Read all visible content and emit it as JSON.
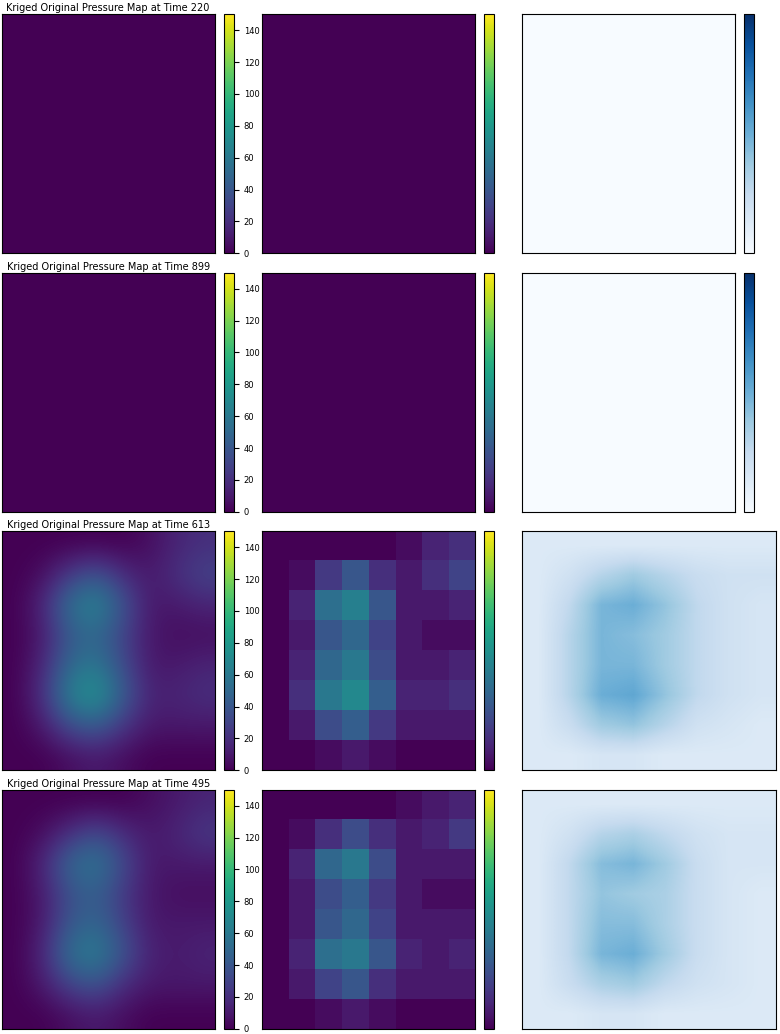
{
  "chart_data": [
    {
      "type": "heatmap",
      "title": "Kriged Original Pressure Map at Time 220",
      "tick_labels": false,
      "cells": [
        [
          0,
          0,
          0,
          0,
          0,
          0,
          0,
          0
        ],
        [
          0,
          0,
          0,
          0,
          0,
          0,
          0,
          0
        ],
        [
          0,
          0,
          0,
          0,
          0,
          0,
          0,
          0
        ],
        [
          0,
          0,
          0,
          0,
          0,
          0,
          0,
          0
        ],
        [
          0,
          0,
          0,
          0,
          0,
          0,
          0,
          0
        ],
        [
          0,
          0,
          0,
          0,
          0,
          0,
          0,
          0
        ],
        [
          0,
          0,
          0,
          0,
          0,
          0,
          0,
          0
        ],
        [
          0,
          0,
          0,
          0,
          0,
          0,
          0,
          0
        ]
      ],
      "colorbar": {
        "range": [
          0,
          150
        ],
        "ticks": [
          0,
          20,
          40,
          60,
          80,
          100,
          120,
          140
        ]
      }
    },
    {
      "type": "heatmap",
      "tick_labels": false,
      "cells": [
        [
          0,
          0,
          0,
          0,
          0,
          0,
          0,
          0
        ],
        [
          0,
          0,
          0,
          0,
          0,
          0,
          0,
          0
        ],
        [
          0,
          0,
          0,
          0,
          0,
          0,
          0,
          0
        ],
        [
          0,
          0,
          0,
          0,
          0,
          0,
          0,
          0
        ],
        [
          0,
          0,
          0,
          0,
          0,
          0,
          0,
          0
        ],
        [
          0,
          0,
          0,
          0,
          0,
          0,
          0,
          0
        ],
        [
          0,
          0,
          0,
          0,
          0,
          0,
          0,
          0
        ],
        [
          0,
          0,
          0,
          0,
          0,
          0,
          0,
          0
        ]
      ],
      "colorbar": {
        "range": [
          0,
          150
        ]
      }
    },
    {
      "type": "heatmap",
      "tick_labels": false,
      "cells": [
        [
          0,
          0,
          0,
          0,
          0,
          0,
          0,
          0
        ],
        [
          0,
          0,
          0,
          0,
          0,
          0,
          0,
          0
        ],
        [
          0,
          0,
          0,
          0,
          0,
          0,
          0,
          0
        ],
        [
          0,
          0,
          0,
          0,
          0,
          0,
          0,
          0
        ],
        [
          0,
          0,
          0,
          0,
          0,
          0,
          0,
          0
        ],
        [
          0,
          0,
          0,
          0,
          0,
          0,
          0,
          0
        ],
        [
          0,
          0,
          0,
          0,
          0,
          0,
          0,
          0
        ],
        [
          0,
          0,
          0,
          0,
          0,
          0,
          0,
          0
        ]
      ],
      "colorbar": {
        "range": [
          0,
          150
        ]
      }
    },
    {
      "type": "heatmap",
      "title": "Kriged Original Pressure Map at Time 899",
      "tick_labels": false,
      "cells": [
        [
          0,
          0,
          0,
          0,
          0,
          0,
          0,
          0
        ],
        [
          0,
          0,
          0,
          0,
          0,
          0,
          0,
          0
        ],
        [
          0,
          0,
          0,
          0,
          0,
          0,
          0,
          0
        ],
        [
          0,
          0,
          0,
          0,
          0,
          0,
          0,
          0
        ],
        [
          0,
          0,
          0,
          0,
          0,
          0,
          0,
          0
        ],
        [
          0,
          0,
          0,
          0,
          0,
          0,
          0,
          0
        ],
        [
          0,
          0,
          0,
          0,
          0,
          0,
          0,
          0
        ],
        [
          0,
          0,
          0,
          0,
          0,
          0,
          0,
          0
        ]
      ],
      "colorbar": {
        "range": [
          0,
          150
        ],
        "ticks": [
          0,
          20,
          40,
          60,
          80,
          100,
          120,
          140
        ]
      }
    },
    {
      "type": "heatmap",
      "tick_labels": false,
      "cells": [
        [
          0,
          0,
          0,
          0,
          0,
          0,
          0,
          0
        ],
        [
          0,
          0,
          0,
          0,
          0,
          0,
          0,
          0
        ],
        [
          0,
          0,
          0,
          0,
          0,
          0,
          0,
          0
        ],
        [
          0,
          0,
          0,
          0,
          0,
          0,
          0,
          0
        ],
        [
          0,
          0,
          0,
          0,
          0,
          0,
          0,
          0
        ],
        [
          0,
          0,
          0,
          0,
          0,
          0,
          0,
          0
        ],
        [
          0,
          0,
          0,
          0,
          0,
          0,
          0,
          0
        ],
        [
          0,
          0,
          0,
          0,
          0,
          0,
          0,
          0
        ]
      ],
      "colorbar": {
        "range": [
          0,
          150
        ]
      }
    },
    {
      "type": "heatmap",
      "tick_labels": false,
      "cells": [
        [
          0,
          0,
          0,
          0,
          0,
          0,
          0,
          0
        ],
        [
          0,
          0,
          0,
          0,
          0,
          0,
          0,
          0
        ],
        [
          0,
          0,
          0,
          0,
          0,
          0,
          0,
          0
        ],
        [
          0,
          0,
          0,
          0,
          0,
          0,
          0,
          0
        ],
        [
          0,
          0,
          0,
          0,
          0,
          0,
          0,
          0
        ],
        [
          0,
          0,
          0,
          0,
          0,
          0,
          0,
          0
        ],
        [
          0,
          0,
          0,
          0,
          0,
          0,
          0,
          0
        ],
        [
          0,
          0,
          0,
          0,
          0,
          0,
          0,
          0
        ]
      ],
      "colorbar": {
        "range": [
          0,
          150
        ]
      }
    },
    {
      "type": "heatmap",
      "title": "Kriged Original Pressure Map at Time 613",
      "tick_labels": false,
      "cells": [
        [
          0,
          0,
          0,
          0,
          0,
          5,
          15,
          20
        ],
        [
          0,
          5,
          25,
          40,
          20,
          10,
          20,
          30
        ],
        [
          0,
          15,
          55,
          70,
          40,
          10,
          10,
          15
        ],
        [
          0,
          10,
          40,
          50,
          30,
          10,
          5,
          5
        ],
        [
          0,
          15,
          50,
          60,
          35,
          10,
          10,
          15
        ],
        [
          0,
          20,
          65,
          80,
          45,
          15,
          15,
          20
        ],
        [
          0,
          10,
          35,
          45,
          25,
          10,
          10,
          10
        ],
        [
          0,
          0,
          5,
          10,
          5,
          0,
          0,
          0
        ]
      ],
      "colorbar": {
        "range": [
          0,
          150
        ],
        "ticks": [
          0,
          20,
          40,
          60,
          80,
          100,
          120,
          140
        ]
      }
    },
    {
      "type": "heatmap",
      "tick_labels": false,
      "cells": [
        [
          0,
          0,
          0,
          0,
          0,
          5,
          15,
          20
        ],
        [
          0,
          5,
          25,
          40,
          20,
          10,
          20,
          30
        ],
        [
          0,
          15,
          55,
          65,
          40,
          10,
          10,
          15
        ],
        [
          0,
          10,
          40,
          50,
          30,
          10,
          5,
          5
        ],
        [
          0,
          15,
          50,
          60,
          35,
          10,
          10,
          15
        ],
        [
          0,
          20,
          60,
          70,
          45,
          15,
          15,
          20
        ],
        [
          0,
          10,
          35,
          45,
          25,
          10,
          10,
          10
        ],
        [
          0,
          0,
          5,
          10,
          5,
          0,
          0,
          0
        ]
      ],
      "colorbar": {
        "range": [
          0,
          150
        ]
      }
    },
    {
      "type": "heatmap",
      "tick_labels": false,
      "cells": [
        [
          20,
          20,
          20,
          20,
          20,
          20,
          20,
          20
        ],
        [
          20,
          30,
          45,
          55,
          45,
          35,
          30,
          30
        ],
        [
          20,
          40,
          70,
          75,
          60,
          40,
          30,
          25
        ],
        [
          20,
          45,
          70,
          65,
          55,
          40,
          30,
          25
        ],
        [
          20,
          45,
          70,
          70,
          55,
          40,
          30,
          25
        ],
        [
          20,
          45,
          75,
          80,
          60,
          40,
          30,
          25
        ],
        [
          20,
          35,
          55,
          60,
          45,
          30,
          25,
          20
        ],
        [
          20,
          20,
          25,
          25,
          20,
          20,
          20,
          20
        ]
      ]
    },
    {
      "type": "heatmap",
      "title": "Kriged Original Pressure Map at Time 495",
      "tick_labels": false,
      "cells": [
        [
          0,
          0,
          0,
          0,
          0,
          5,
          10,
          15
        ],
        [
          0,
          5,
          20,
          35,
          20,
          10,
          15,
          25
        ],
        [
          0,
          15,
          50,
          60,
          35,
          10,
          10,
          10
        ],
        [
          0,
          10,
          35,
          45,
          25,
          10,
          5,
          5
        ],
        [
          0,
          10,
          40,
          50,
          30,
          10,
          10,
          10
        ],
        [
          0,
          15,
          55,
          65,
          40,
          15,
          10,
          15
        ],
        [
          0,
          10,
          30,
          40,
          20,
          10,
          10,
          10
        ],
        [
          0,
          0,
          5,
          10,
          5,
          0,
          0,
          0
        ]
      ],
      "colorbar": {
        "range": [
          0,
          150
        ],
        "ticks": [
          0,
          20,
          40,
          60,
          80,
          100,
          120,
          140
        ]
      }
    },
    {
      "type": "heatmap",
      "tick_labels": false,
      "cells": [
        [
          0,
          0,
          0,
          0,
          0,
          5,
          10,
          15
        ],
        [
          0,
          5,
          20,
          35,
          20,
          10,
          15,
          25
        ],
        [
          0,
          15,
          50,
          60,
          35,
          10,
          10,
          10
        ],
        [
          0,
          10,
          35,
          45,
          25,
          10,
          5,
          5
        ],
        [
          0,
          10,
          40,
          50,
          30,
          10,
          10,
          10
        ],
        [
          0,
          15,
          55,
          60,
          40,
          15,
          10,
          15
        ],
        [
          0,
          10,
          30,
          40,
          20,
          10,
          10,
          10
        ],
        [
          0,
          0,
          5,
          10,
          5,
          0,
          0,
          0
        ]
      ],
      "colorbar": {
        "range": [
          0,
          150
        ]
      }
    },
    {
      "type": "heatmap",
      "tick_labels": false,
      "cells": [
        [
          20,
          20,
          20,
          20,
          20,
          20,
          20,
          20
        ],
        [
          20,
          30,
          45,
          50,
          40,
          30,
          25,
          25
        ],
        [
          20,
          40,
          65,
          70,
          55,
          35,
          25,
          25
        ],
        [
          20,
          40,
          60,
          55,
          50,
          35,
          25,
          20
        ],
        [
          20,
          40,
          65,
          65,
          50,
          35,
          25,
          20
        ],
        [
          20,
          40,
          70,
          75,
          55,
          35,
          25,
          20
        ],
        [
          20,
          35,
          50,
          55,
          40,
          30,
          25,
          20
        ],
        [
          20,
          20,
          25,
          25,
          20,
          20,
          20,
          20
        ]
      ]
    }
  ]
}
